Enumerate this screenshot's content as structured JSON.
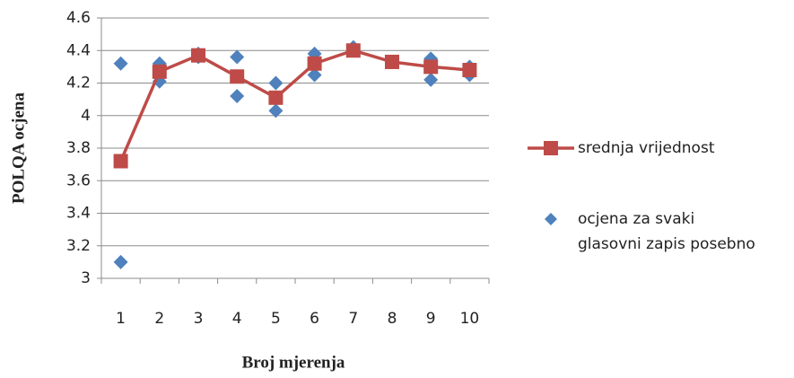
{
  "chart_data": {
    "type": "line",
    "x_label": "Broj mjerenja",
    "y_label": "POLQA ocjena",
    "categories": [
      "1",
      "2",
      "3",
      "4",
      "5",
      "6",
      "7",
      "8",
      "9",
      "10"
    ],
    "ylim": [
      3,
      4.6
    ],
    "yticks": [
      3,
      3.2,
      3.4,
      3.6,
      3.8,
      4,
      4.2,
      4.4,
      4.6
    ],
    "grid": true,
    "legend": "right",
    "series": [
      {
        "name": "srednja vrijednost",
        "type": "line",
        "color": "#be4b48",
        "values": [
          3.72,
          4.27,
          4.37,
          4.24,
          4.11,
          4.32,
          4.4,
          4.33,
          4.3,
          4.28
        ]
      },
      {
        "name": "ocjena za svaki\nglasovni zapis posebno",
        "type": "scatter",
        "color": "#4f81bd",
        "values": [
          [
            4.32,
            3.1
          ],
          [
            4.32,
            4.21
          ],
          [
            4.38,
            4.36
          ],
          [
            4.36,
            4.12
          ],
          [
            4.2,
            4.03
          ],
          [
            4.38,
            4.25
          ],
          [
            4.42,
            4.4
          ],
          [
            4.33,
            4.33
          ],
          [
            4.35,
            4.22
          ],
          [
            4.3,
            4.25
          ]
        ]
      }
    ]
  }
}
